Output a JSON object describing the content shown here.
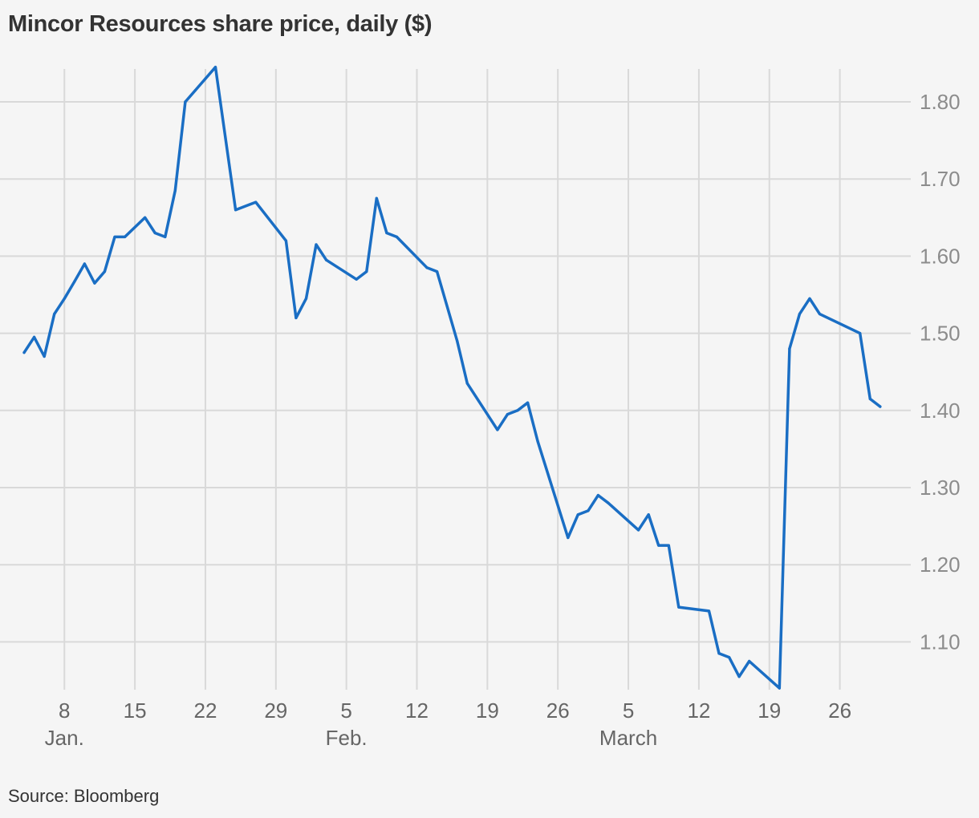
{
  "chart_data": {
    "type": "line",
    "title": "Mincor Resources share price, daily ($)",
    "source": "Source: Bloomberg",
    "xlabel": "",
    "ylabel": "",
    "ylim": [
      1.04,
      1.85
    ],
    "y_ticks": [
      {
        "value": 1.1,
        "label": "1.10"
      },
      {
        "value": 1.2,
        "label": "1.20"
      },
      {
        "value": 1.3,
        "label": "1.30"
      },
      {
        "value": 1.4,
        "label": "1.40"
      },
      {
        "value": 1.5,
        "label": "1.50"
      },
      {
        "value": 1.6,
        "label": "1.60"
      },
      {
        "value": 1.7,
        "label": "1.70"
      },
      {
        "value": 1.8,
        "label": "1.80"
      }
    ],
    "x_ticks": [
      {
        "date": "2021-01-08",
        "label": "8"
      },
      {
        "date": "2021-01-15",
        "label": "15"
      },
      {
        "date": "2021-01-22",
        "label": "22"
      },
      {
        "date": "2021-01-29",
        "label": "29"
      },
      {
        "date": "2021-02-05",
        "label": "5"
      },
      {
        "date": "2021-02-12",
        "label": "12"
      },
      {
        "date": "2021-02-19",
        "label": "19"
      },
      {
        "date": "2021-02-26",
        "label": "26"
      },
      {
        "date": "2021-03-05",
        "label": "5"
      },
      {
        "date": "2021-03-12",
        "label": "12"
      },
      {
        "date": "2021-03-19",
        "label": "19"
      },
      {
        "date": "2021-03-26",
        "label": "26"
      }
    ],
    "month_labels": [
      {
        "date": "2021-01-08",
        "label": "Jan."
      },
      {
        "date": "2021-02-05",
        "label": "Feb."
      },
      {
        "date": "2021-03-05",
        "label": "March"
      }
    ],
    "x_domain": [
      "2021-01-03",
      "2021-03-31"
    ],
    "grid": true,
    "line_color": "#1a6ec4",
    "series": [
      {
        "points": [
          [
            "2021-01-04",
            1.475
          ],
          [
            "2021-01-05",
            1.495
          ],
          [
            "2021-01-06",
            1.47
          ],
          [
            "2021-01-07",
            1.525
          ],
          [
            "2021-01-08",
            1.545
          ],
          [
            "2021-01-09",
            1.567
          ],
          [
            "2021-01-10",
            1.59
          ],
          [
            "2021-01-11",
            1.565
          ],
          [
            "2021-01-12",
            1.58
          ],
          [
            "2021-01-13",
            1.625
          ],
          [
            "2021-01-14",
            1.625
          ],
          [
            "2021-01-16",
            1.65
          ],
          [
            "2021-01-17",
            1.63
          ],
          [
            "2021-01-18",
            1.625
          ],
          [
            "2021-01-19",
            1.685
          ],
          [
            "2021-01-20",
            1.8
          ],
          [
            "2021-01-21",
            1.815
          ],
          [
            "2021-01-22",
            1.83
          ],
          [
            "2021-01-23",
            1.845
          ],
          [
            "2021-01-25",
            1.66
          ],
          [
            "2021-01-27",
            1.67
          ],
          [
            "2021-01-30",
            1.62
          ],
          [
            "2021-01-31",
            1.52
          ],
          [
            "2021-02-01",
            1.545
          ],
          [
            "2021-02-02",
            1.615
          ],
          [
            "2021-02-03",
            1.595
          ],
          [
            "2021-02-06",
            1.57
          ],
          [
            "2021-02-07",
            1.58
          ],
          [
            "2021-02-08",
            1.675
          ],
          [
            "2021-02-09",
            1.63
          ],
          [
            "2021-02-10",
            1.625
          ],
          [
            "2021-02-13",
            1.585
          ],
          [
            "2021-02-14",
            1.58
          ],
          [
            "2021-02-16",
            1.49
          ],
          [
            "2021-02-17",
            1.435
          ],
          [
            "2021-02-20",
            1.375
          ],
          [
            "2021-02-21",
            1.395
          ],
          [
            "2021-02-22",
            1.4
          ],
          [
            "2021-02-23",
            1.41
          ],
          [
            "2021-02-24",
            1.36
          ],
          [
            "2021-02-27",
            1.235
          ],
          [
            "2021-02-28",
            1.265
          ],
          [
            "2021-03-01",
            1.27
          ],
          [
            "2021-03-02",
            1.29
          ],
          [
            "2021-03-03",
            1.28
          ],
          [
            "2021-03-06",
            1.245
          ],
          [
            "2021-03-07",
            1.265
          ],
          [
            "2021-03-08",
            1.225
          ],
          [
            "2021-03-09",
            1.225
          ],
          [
            "2021-03-10",
            1.145
          ],
          [
            "2021-03-13",
            1.14
          ],
          [
            "2021-03-14",
            1.085
          ],
          [
            "2021-03-15",
            1.08
          ],
          [
            "2021-03-16",
            1.055
          ],
          [
            "2021-03-17",
            1.075
          ],
          [
            "2021-03-20",
            1.04
          ],
          [
            "2021-03-21",
            1.48
          ],
          [
            "2021-03-22",
            1.525
          ],
          [
            "2021-03-23",
            1.545
          ],
          [
            "2021-03-24",
            1.525
          ],
          [
            "2021-03-28",
            1.5
          ],
          [
            "2021-03-29",
            1.415
          ],
          [
            "2021-03-30",
            1.405
          ]
        ]
      }
    ]
  }
}
